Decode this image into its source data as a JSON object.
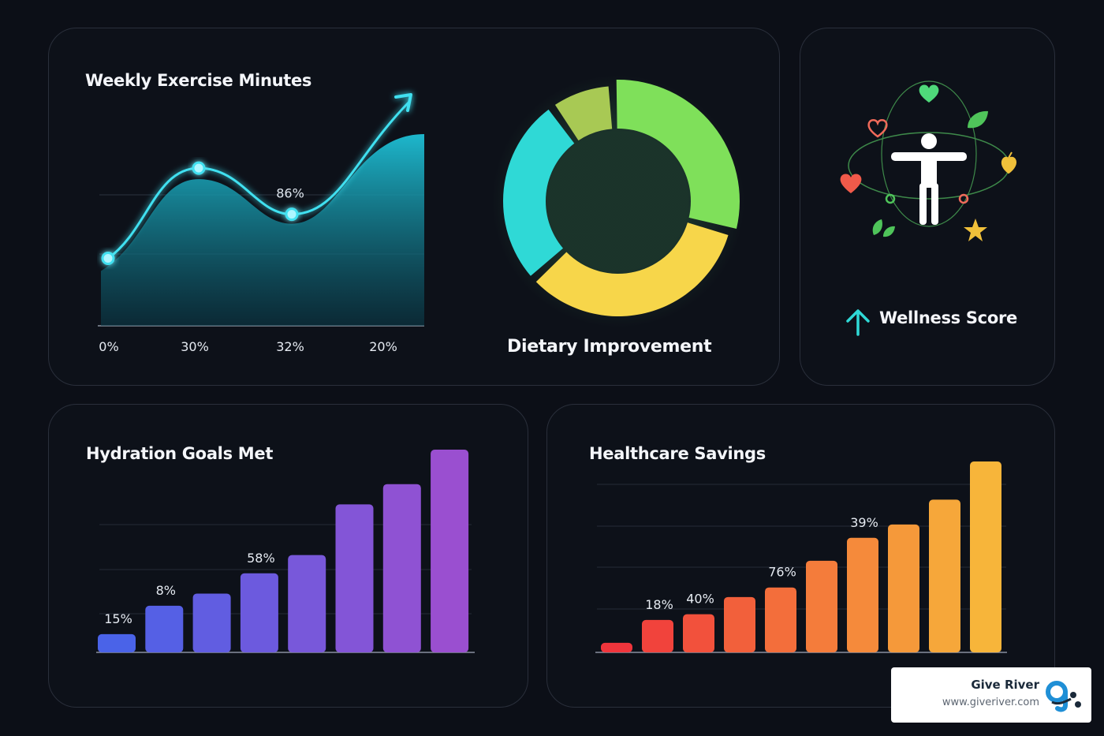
{
  "panels": {
    "exercise_title": "Weekly Exercise Minutes",
    "dietary_label": "Dietary Improvement",
    "wellness_label": "Wellness Score",
    "hydration_title": "Hydration Goals Met",
    "savings_title": "Healthcare Savings"
  },
  "brand": {
    "name": "Give River",
    "url": "www.giveriver.com"
  },
  "icons": {
    "wellness": [
      "human-figure-icon",
      "heart-icon",
      "leaf-icon",
      "star-icon",
      "up-arrow-icon"
    ]
  },
  "colors": {
    "exercise_line": "#3fe0f0",
    "exercise_fill": "#1a9fb0",
    "donut": [
      "#7fe05a",
      "#f7d64a",
      "#2fd9d6",
      "#a8c954"
    ],
    "hydration_start": "#4a63e8",
    "hydration_end": "#9a4fd0",
    "savings_start": "#f0353c",
    "savings_end": "#f7b53a",
    "wellness_arrow": "#2fd9d6"
  },
  "chart_data": [
    {
      "type": "area",
      "title": "Weekly Exercise Minutes",
      "x_tick_labels": [
        "0%",
        "30%",
        "32%",
        "20%"
      ],
      "annotations": [
        "86%"
      ],
      "values": [
        25,
        68,
        46,
        100
      ]
    },
    {
      "type": "pie",
      "title": "Dietary Improvement",
      "values": [
        30,
        34,
        27,
        9
      ]
    },
    {
      "type": "bar",
      "title": "Hydration Goals Met",
      "values": [
        9,
        23,
        29,
        39,
        48,
        73,
        83,
        100
      ],
      "data_labels": [
        "15%",
        "8%",
        "",
        "58%",
        "",
        "",
        "",
        ""
      ]
    },
    {
      "type": "bar",
      "title": "Healthcare Savings",
      "values": [
        5,
        17,
        20,
        29,
        34,
        48,
        60,
        67,
        80,
        100
      ],
      "data_labels": [
        "",
        "18%",
        "40%",
        "",
        "76%",
        "",
        "39%",
        "",
        "",
        ""
      ]
    }
  ]
}
